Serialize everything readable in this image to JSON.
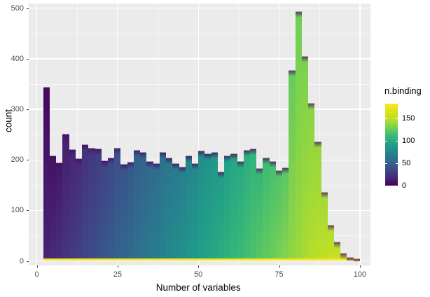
{
  "figure": {
    "background": "#ffffff",
    "panel_background": "#ebebeb",
    "grid_color": "#ffffff",
    "tick_color": "#333333",
    "tick_label_color": "#4d4d4d",
    "baseline_strip_color": "#f5e626",
    "bar_cap_color": "#3a2166"
  },
  "chart_data": {
    "type": "bar",
    "subtype": "histogram-stacked-gradient",
    "title": "",
    "xlabel": "Number of variables",
    "ylabel": "count",
    "x_ticks": [
      0,
      25,
      50,
      75,
      100
    ],
    "y_ticks": [
      0,
      100,
      200,
      300,
      400,
      500
    ],
    "x_minor_ticks": [
      12.5,
      37.5,
      62.5,
      87.5
    ],
    "y_minor_ticks": [
      50,
      150,
      250,
      350,
      450
    ],
    "xlim": [
      -2.5,
      103.5
    ],
    "ylim": [
      -9,
      509
    ],
    "bin_width": 2,
    "bin_starts": [
      2,
      4,
      6,
      8,
      10,
      12,
      14,
      16,
      18,
      20,
      22,
      24,
      26,
      28,
      30,
      32,
      34,
      36,
      38,
      40,
      42,
      44,
      46,
      48,
      50,
      52,
      54,
      56,
      58,
      60,
      62,
      64,
      66,
      68,
      70,
      72,
      74,
      76,
      78,
      80,
      82,
      84,
      86,
      88,
      90,
      92,
      94,
      96,
      98
    ],
    "counts": [
      345,
      209,
      195,
      251,
      221,
      203,
      231,
      224,
      222,
      199,
      205,
      224,
      192,
      196,
      219,
      215,
      198,
      194,
      215,
      205,
      194,
      187,
      209,
      193,
      218,
      213,
      216,
      177,
      209,
      213,
      197,
      219,
      223,
      184,
      204,
      197,
      179,
      185,
      378,
      494,
      406,
      312,
      236,
      137,
      72,
      38,
      16,
      7,
      3
    ],
    "legend": {
      "title": "n.binding",
      "ticks": [
        0,
        50,
        100,
        150
      ],
      "scale_max": 182,
      "position": "right"
    },
    "fill_scale": {
      "name": "viridis",
      "anchors": [
        "#440154",
        "#482878",
        "#3e4a89",
        "#31688e",
        "#26828e",
        "#1f9e89",
        "#35b779",
        "#6ece58",
        "#b5de2b",
        "#d8e219",
        "#fde725"
      ]
    }
  }
}
